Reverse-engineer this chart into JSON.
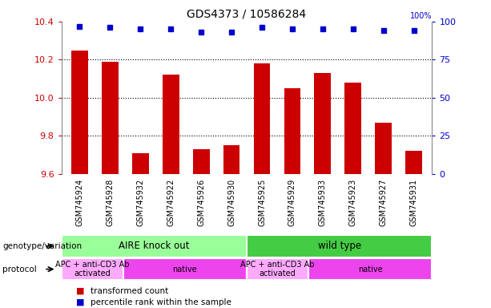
{
  "title": "GDS4373 / 10586284",
  "samples": [
    "GSM745924",
    "GSM745928",
    "GSM745932",
    "GSM745922",
    "GSM745926",
    "GSM745930",
    "GSM745925",
    "GSM745929",
    "GSM745933",
    "GSM745923",
    "GSM745927",
    "GSM745931"
  ],
  "bar_values": [
    10.25,
    10.19,
    9.71,
    10.12,
    9.73,
    9.75,
    10.18,
    10.05,
    10.13,
    10.08,
    9.87,
    9.72
  ],
  "dot_values": [
    97,
    96,
    95,
    95,
    93,
    93,
    96,
    95,
    95,
    95,
    94,
    94
  ],
  "ylim_left": [
    9.6,
    10.4
  ],
  "ylim_right": [
    0,
    100
  ],
  "yticks_left": [
    9.6,
    9.8,
    10.0,
    10.2,
    10.4
  ],
  "yticks_right": [
    0,
    25,
    50,
    75,
    100
  ],
  "bar_color": "#cc0000",
  "dot_color": "#0000cc",
  "grid_color": "#000000",
  "tick_label_color_left": "#cc0000",
  "tick_label_color_right": "#0000cc",
  "genotype_groups": [
    {
      "label": "AIRE knock out",
      "start": 0,
      "end": 6,
      "color": "#99ff99"
    },
    {
      "label": "wild type",
      "start": 6,
      "end": 12,
      "color": "#44cc44"
    }
  ],
  "protocol_groups": [
    {
      "label": "APC + anti-CD3 Ab\nactivated",
      "start": 0,
      "end": 2,
      "color": "#ffaaff"
    },
    {
      "label": "native",
      "start": 2,
      "end": 6,
      "color": "#ee44ee"
    },
    {
      "label": "APC + anti-CD3 Ab\nactivated",
      "start": 6,
      "end": 8,
      "color": "#ffaaff"
    },
    {
      "label": "native",
      "start": 8,
      "end": 12,
      "color": "#ee44ee"
    }
  ],
  "legend_items": [
    {
      "label": "transformed count",
      "color": "#cc0000"
    },
    {
      "label": "percentile rank within the sample",
      "color": "#0000cc"
    }
  ],
  "genotype_label": "genotype/variation",
  "protocol_label": "protocol",
  "xtick_bg_color": "#c8c8c8",
  "spine_color": "#888888"
}
